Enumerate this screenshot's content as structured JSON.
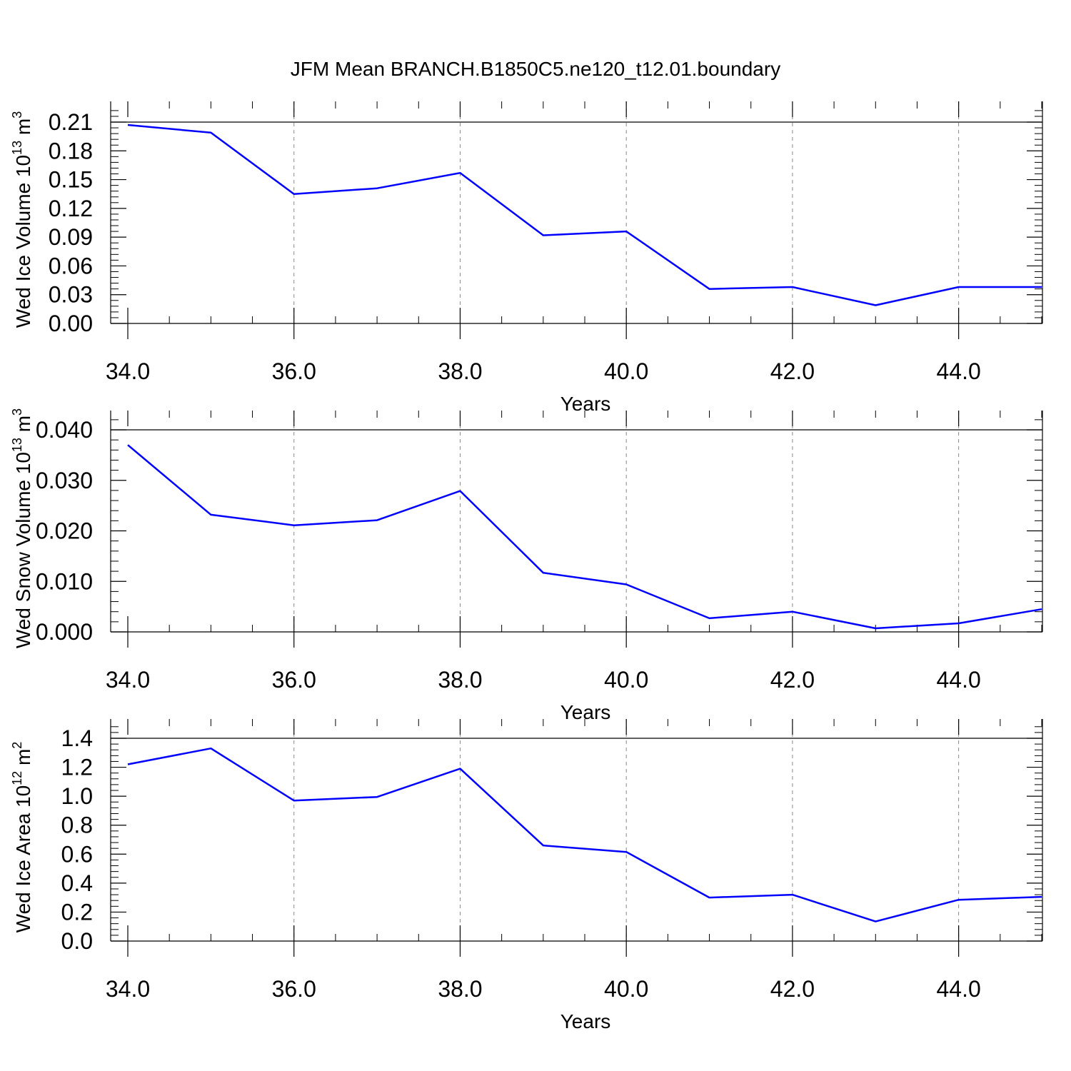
{
  "figure_title": "JFM Mean BRANCH.B1850C5.ne120_t12.01.boundary",
  "line_color": "#0000ff",
  "grid_color": "#888888",
  "chart_data": [
    {
      "type": "line",
      "xlabel": "Years",
      "ylabel": {
        "main": "Wed Ice Volume 10",
        "exp": "13",
        "unit": " m",
        "unit_exp": "3"
      },
      "x": [
        34,
        35,
        36,
        37,
        38,
        39,
        40,
        41,
        42,
        43,
        44,
        45
      ],
      "series": [
        {
          "values": [
            0.207,
            0.199,
            0.135,
            0.141,
            0.157,
            0.092,
            0.096,
            0.036,
            0.038,
            0.019,
            0.038,
            0.038
          ]
        }
      ],
      "xlim": [
        34,
        45
      ],
      "ylim": [
        0,
        0.21
      ],
      "xticks": [
        34,
        36,
        38,
        40,
        42,
        44
      ],
      "xtick_labels": [
        "34.0",
        "36.0",
        "38.0",
        "40.0",
        "42.0",
        "44.0"
      ],
      "yticks": [
        0,
        0.03,
        0.06,
        0.09,
        0.12,
        0.15,
        0.18,
        0.21
      ],
      "ytick_labels": [
        "0.00",
        "0.03",
        "0.06",
        "0.09",
        "0.12",
        "0.15",
        "0.18",
        "0.21"
      ],
      "grid": "vertical-dashed"
    },
    {
      "type": "line",
      "xlabel": "Years",
      "ylabel": {
        "main": "Wed Snow Volume 10",
        "exp": "13",
        "unit": " m",
        "unit_exp": "3"
      },
      "x": [
        34,
        35,
        36,
        37,
        38,
        39,
        40,
        41,
        42,
        43,
        44,
        45
      ],
      "series": [
        {
          "values": [
            0.037,
            0.0232,
            0.0211,
            0.0221,
            0.0279,
            0.0117,
            0.0094,
            0.0027,
            0.004,
            0.0007,
            0.0017,
            0.0045
          ]
        }
      ],
      "xlim": [
        34,
        45
      ],
      "ylim": [
        0,
        0.04
      ],
      "xticks": [
        34,
        36,
        38,
        40,
        42,
        44
      ],
      "xtick_labels": [
        "34.0",
        "36.0",
        "38.0",
        "40.0",
        "42.0",
        "44.0"
      ],
      "yticks": [
        0,
        0.01,
        0.02,
        0.03,
        0.04
      ],
      "ytick_labels": [
        "0.000",
        "0.010",
        "0.020",
        "0.030",
        "0.040"
      ],
      "grid": "vertical-dashed"
    },
    {
      "type": "line",
      "xlabel": "Years",
      "ylabel": {
        "main": "Wed Ice Area 10",
        "exp": "12",
        "unit": " m",
        "unit_exp": "2"
      },
      "x": [
        34,
        35,
        36,
        37,
        38,
        39,
        40,
        41,
        42,
        43,
        44,
        45
      ],
      "series": [
        {
          "values": [
            1.22,
            1.33,
            0.97,
            0.995,
            1.19,
            0.66,
            0.615,
            0.3,
            0.32,
            0.135,
            0.285,
            0.305
          ]
        }
      ],
      "xlim": [
        34,
        45
      ],
      "ylim": [
        0,
        1.4
      ],
      "xticks": [
        34,
        36,
        38,
        40,
        42,
        44
      ],
      "xtick_labels": [
        "34.0",
        "36.0",
        "38.0",
        "40.0",
        "42.0",
        "44.0"
      ],
      "yticks": [
        0,
        0.2,
        0.4,
        0.6,
        0.8,
        1.0,
        1.2,
        1.4
      ],
      "ytick_labels": [
        "0.0",
        "0.2",
        "0.4",
        "0.6",
        "0.8",
        "1.0",
        "1.2",
        "1.4"
      ],
      "grid": "vertical-dashed"
    }
  ]
}
